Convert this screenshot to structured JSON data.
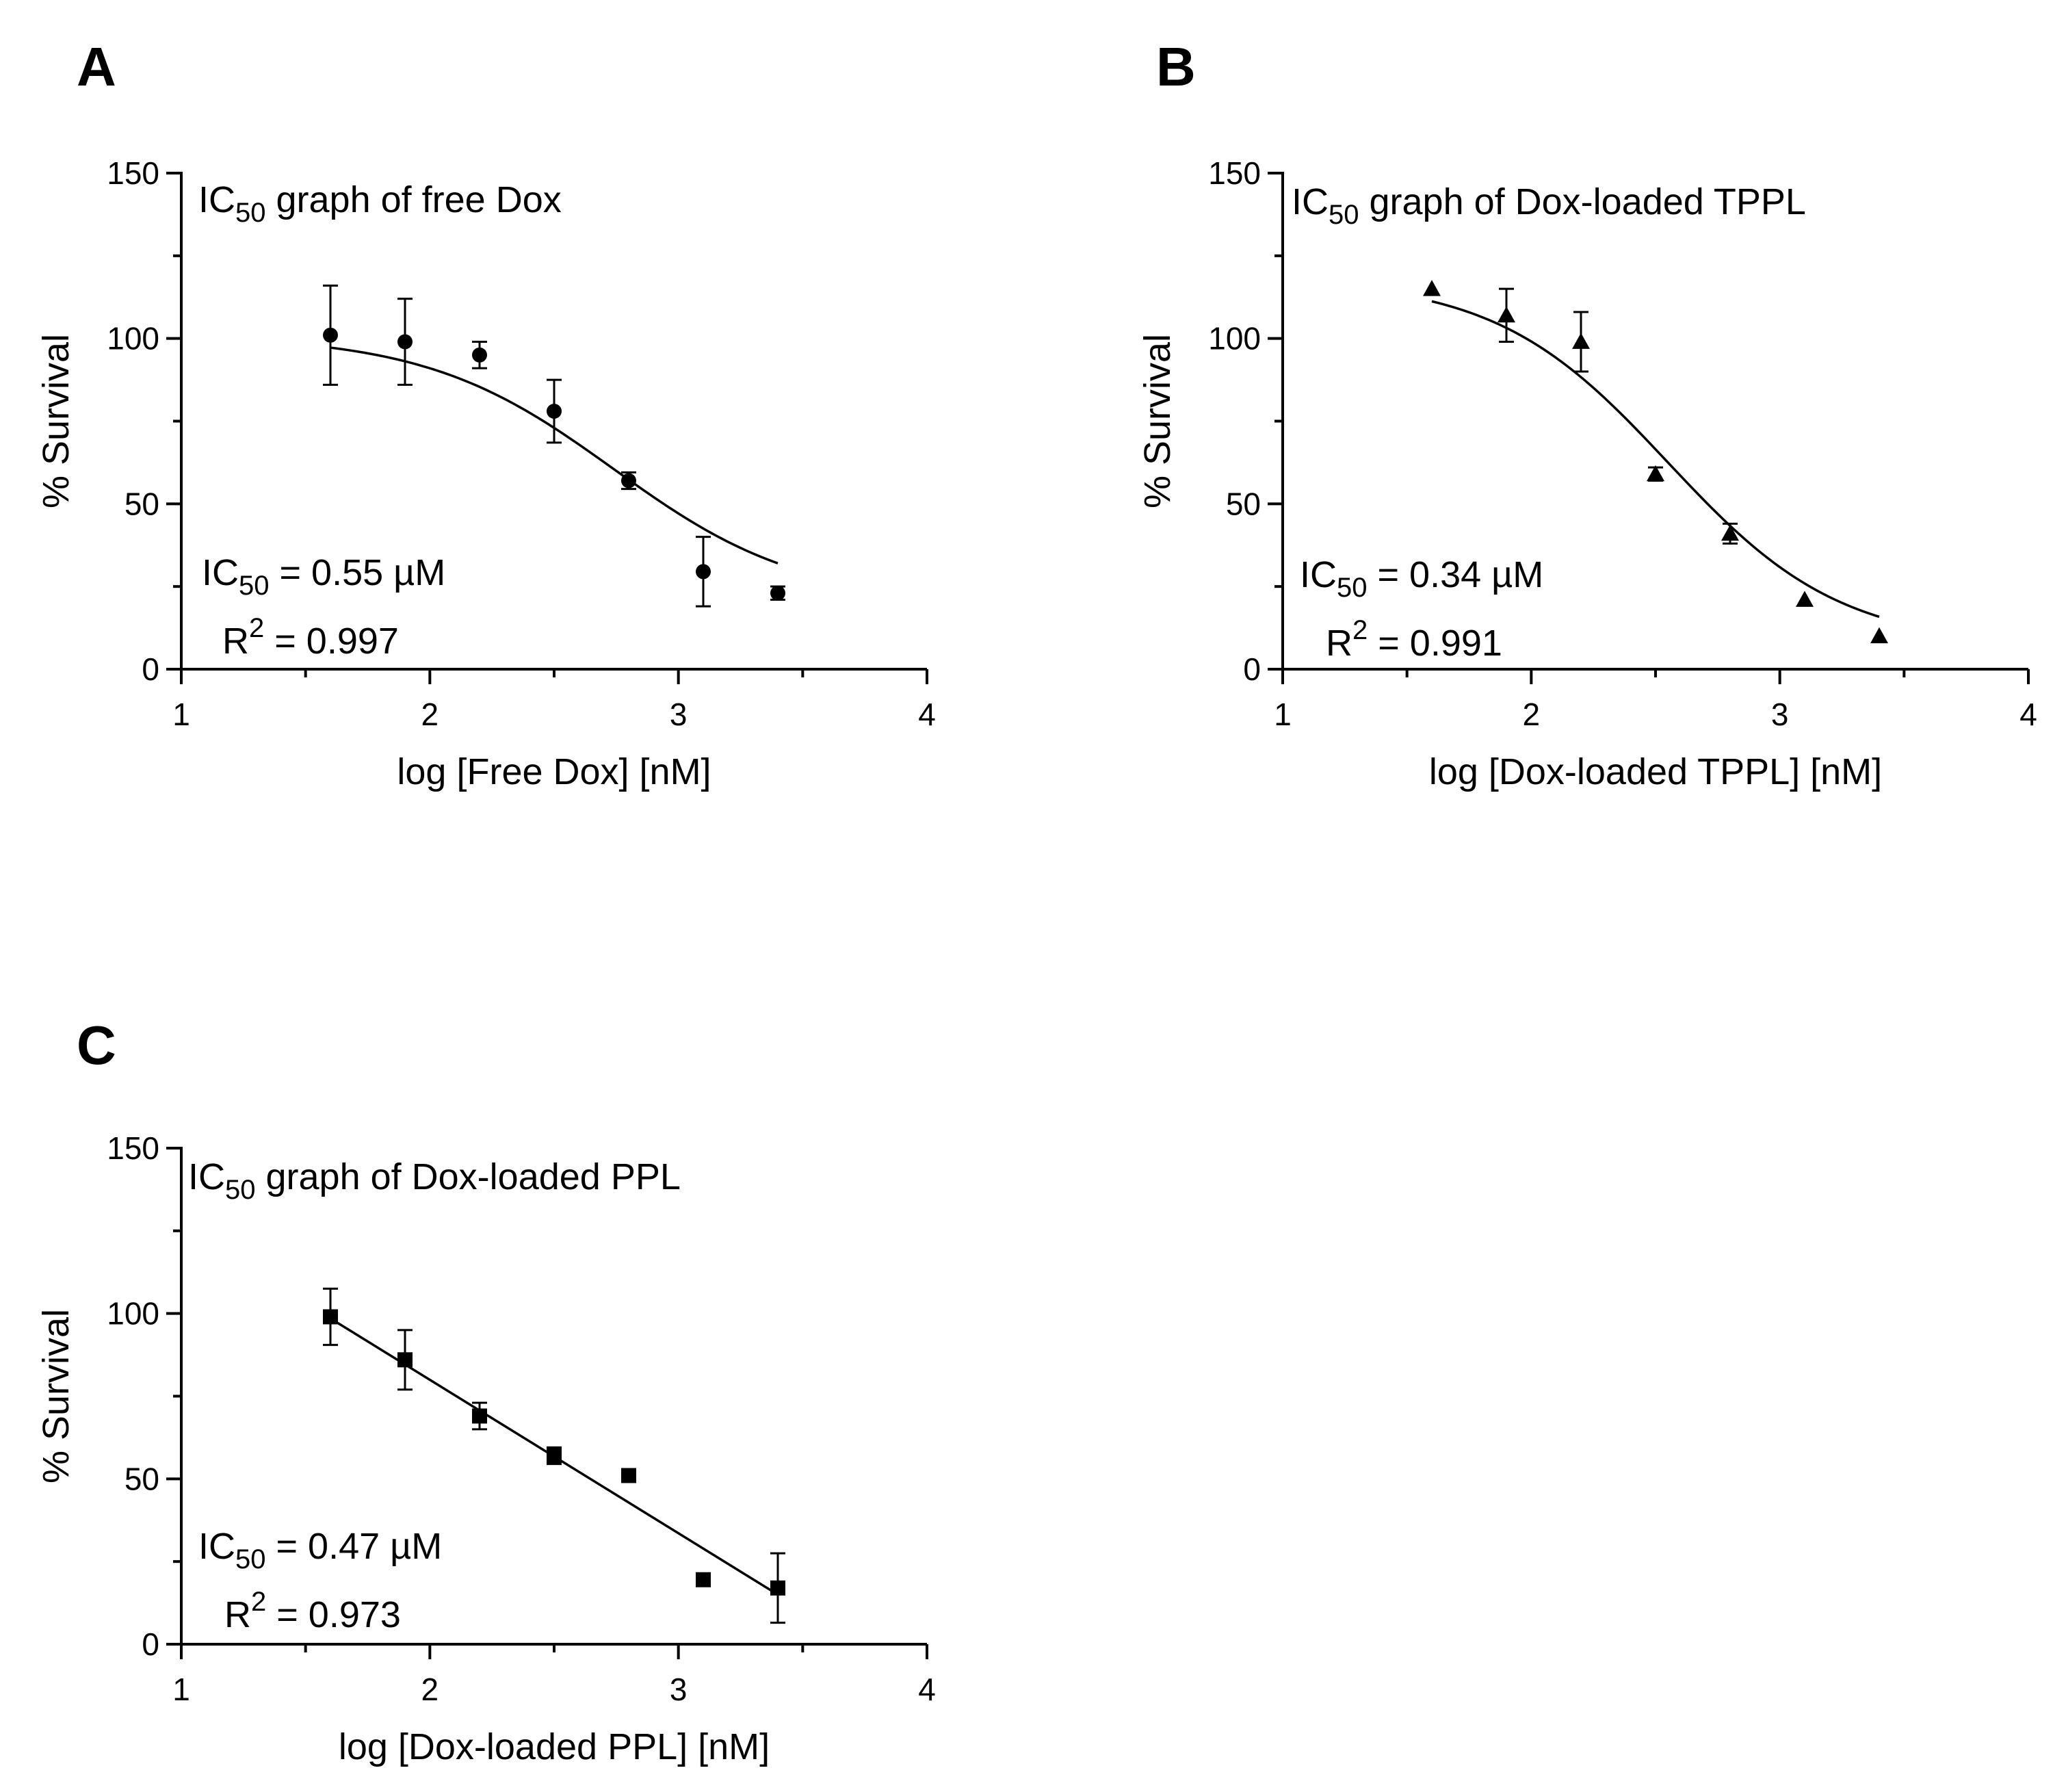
{
  "chart_data": [
    {
      "type": "scatter",
      "panel": "A",
      "title_prefix": "IC",
      "title_sub": "50",
      "title_suffix": " graph of free Dox",
      "xlabel": "log [Free Dox] [nM]",
      "ylabel": "% Survival",
      "xlim": [
        1,
        4
      ],
      "ylim": [
        0,
        150
      ],
      "xticks": [
        1,
        2,
        3,
        4
      ],
      "yticks": [
        0,
        50,
        100,
        150
      ],
      "marker": "circle",
      "fit": {
        "model": "sigmoid",
        "top": 101,
        "bottom": 20,
        "ic50_log": 2.74,
        "hill": 1.15
      },
      "points": [
        {
          "x": 1.6,
          "y": 101,
          "err": 15
        },
        {
          "x": 1.9,
          "y": 99,
          "err": 13
        },
        {
          "x": 2.2,
          "y": 95,
          "err": 4
        },
        {
          "x": 2.5,
          "y": 78,
          "err": 9.5
        },
        {
          "x": 2.8,
          "y": 57,
          "err": 2.5
        },
        {
          "x": 3.1,
          "y": 29.5,
          "err": 10.5
        },
        {
          "x": 3.4,
          "y": 23,
          "err": 2
        }
      ],
      "ic50_prefix": "IC",
      "ic50_sub": "50",
      "ic50_suffix": " = 0.55 µM",
      "r2_prefix": "R",
      "r2_sup": "2",
      "r2_suffix": " = 0.997"
    },
    {
      "type": "scatter",
      "panel": "B",
      "title_prefix": "IC",
      "title_sub": "50",
      "title_suffix": " graph of Dox-loaded TPPL",
      "xlabel": "log [Dox-loaded TPPL] [nM]",
      "ylabel": "% Survival",
      "xlim": [
        1,
        4
      ],
      "ylim": [
        0,
        150
      ],
      "xticks": [
        1,
        2,
        3,
        4
      ],
      "yticks": [
        0,
        50,
        100,
        150
      ],
      "marker": "triangle",
      "fit": {
        "model": "sigmoid",
        "top": 118,
        "bottom": 7,
        "ic50_log": 2.55,
        "hill": 1.25
      },
      "points": [
        {
          "x": 1.6,
          "y": 115,
          "err": 0
        },
        {
          "x": 1.9,
          "y": 107,
          "err": 8
        },
        {
          "x": 2.2,
          "y": 99,
          "err": 9
        },
        {
          "x": 2.5,
          "y": 59,
          "err": 2
        },
        {
          "x": 2.8,
          "y": 41,
          "err": 3
        },
        {
          "x": 3.1,
          "y": 21,
          "err": 0
        },
        {
          "x": 3.4,
          "y": 10,
          "err": 0
        }
      ],
      "ic50_prefix": "IC",
      "ic50_sub": "50",
      "ic50_suffix": " = 0.34 µM",
      "r2_prefix": "R",
      "r2_sup": "2",
      "r2_suffix": " = 0.991"
    },
    {
      "type": "scatter",
      "panel": "C",
      "title_prefix": "IC",
      "title_sub": "50",
      "title_suffix": " graph of Dox-loaded PPL",
      "xlabel": "log [Dox-loaded PPL] [nM]",
      "ylabel": "% Survival",
      "xlim": [
        1,
        4
      ],
      "ylim": [
        0,
        150
      ],
      "xticks": [
        1,
        2,
        3,
        4
      ],
      "yticks": [
        0,
        50,
        100,
        150
      ],
      "marker": "square",
      "fit": {
        "model": "linear",
        "x0": 1.6,
        "y0": 98.5,
        "x1": 3.4,
        "y1": 15
      },
      "points": [
        {
          "x": 1.6,
          "y": 99,
          "err": 8.5
        },
        {
          "x": 1.9,
          "y": 86,
          "err": 9
        },
        {
          "x": 2.2,
          "y": 69,
          "err": 4
        },
        {
          "x": 2.5,
          "y": 57,
          "err": 2.5
        },
        {
          "x": 2.8,
          "y": 51,
          "err": 0
        },
        {
          "x": 3.1,
          "y": 19.5,
          "err": 0
        },
        {
          "x": 3.4,
          "y": 17,
          "err": 10.5
        }
      ],
      "ic50_prefix": "IC",
      "ic50_sub": "50",
      "ic50_suffix": " = 0.47 µM",
      "r2_prefix": "R",
      "r2_sup": "2",
      "r2_suffix": " = 0.973"
    }
  ]
}
